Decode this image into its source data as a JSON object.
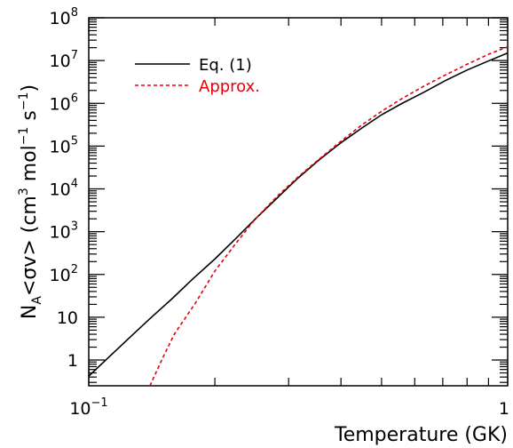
{
  "chart_data": {
    "type": "line",
    "title": "",
    "xlabel": "Temperature (GK)",
    "ylabel": {
      "main": "N",
      "sub": "A",
      "mid": "<σv> (cm",
      "sup1": "3",
      "mid2": " mol",
      "sup2": "−1",
      "mid3": " s",
      "sup3": "−1",
      "end": ")"
    },
    "xscale": "log",
    "yscale": "log",
    "xlim": [
      0.1,
      1.0
    ],
    "ylim": [
      0.25,
      100000000
    ],
    "grid": false,
    "legend_position": "top-left",
    "x_ticks": [
      {
        "value": 0.1,
        "base": "10",
        "exp": "−1"
      },
      {
        "value": 1.0,
        "base": "1",
        "exp": ""
      }
    ],
    "y_ticks": [
      {
        "value": 1,
        "base": "1",
        "exp": ""
      },
      {
        "value": 10,
        "base": "10",
        "exp": ""
      },
      {
        "value": 100,
        "base": "10",
        "exp": "2"
      },
      {
        "value": 1000,
        "base": "10",
        "exp": "3"
      },
      {
        "value": 10000,
        "base": "10",
        "exp": "4"
      },
      {
        "value": 100000,
        "base": "10",
        "exp": "5"
      },
      {
        "value": 1000000,
        "base": "10",
        "exp": "6"
      },
      {
        "value": 10000000,
        "base": "10",
        "exp": "7"
      },
      {
        "value": 100000000,
        "base": "10",
        "exp": "8"
      }
    ],
    "series": [
      {
        "name": "Eq. (1)",
        "color": "#000000",
        "dash": "solid",
        "x": [
          0.1,
          0.112,
          0.125,
          0.14,
          0.158,
          0.177,
          0.2,
          0.224,
          0.25,
          0.282,
          0.316,
          0.355,
          0.4,
          0.45,
          0.5,
          0.56,
          0.63,
          0.71,
          0.8,
          0.9,
          1.0
        ],
        "y": [
          0.42,
          1.2,
          3.3,
          9.3,
          27,
          78,
          230,
          680,
          2000,
          6200,
          18000,
          48000,
          120000,
          270000,
          540000,
          1000000,
          1800000,
          3400000,
          6000000,
          9800000,
          15000000
        ]
      },
      {
        "name": "Approx.",
        "color": "#e8000b",
        "dash": "dashed",
        "x": [
          0.14,
          0.15,
          0.16,
          0.18,
          0.2,
          0.224,
          0.25,
          0.282,
          0.316,
          0.355,
          0.4,
          0.45,
          0.5,
          0.56,
          0.63,
          0.71,
          0.8,
          0.9,
          1.0
        ],
        "y": [
          0.25,
          1.1,
          4,
          22,
          120,
          520,
          2000,
          6800,
          19000,
          50000,
          130000,
          320000,
          650000,
          1300000,
          2500000,
          4600000,
          8200000,
          14000000,
          21000000
        ]
      }
    ]
  }
}
